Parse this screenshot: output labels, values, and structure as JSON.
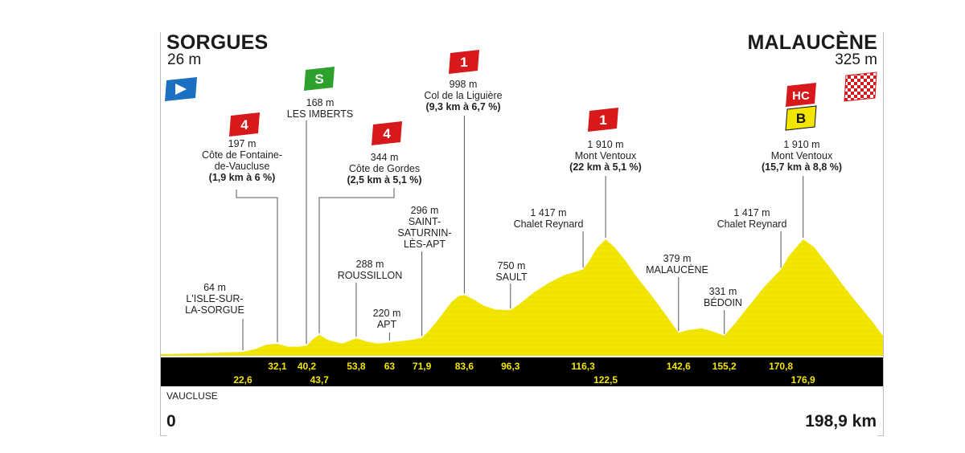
{
  "start": {
    "name": "SORGUES",
    "altitude": "26 m"
  },
  "finish": {
    "name": "MALAUCÈNE",
    "altitude": "325 m"
  },
  "department": "VAUCLUSE",
  "distance": {
    "start": "0",
    "end": "198,9 km"
  },
  "climb_badges": [
    {
      "id": "fontaine",
      "label": "4",
      "color": "#d7191c"
    },
    {
      "id": "imberts",
      "label": "S",
      "color": "#2ea12c"
    },
    {
      "id": "gordes",
      "label": "4",
      "color": "#d7191c"
    },
    {
      "id": "liguiere",
      "label": "1",
      "color": "#d7191c"
    },
    {
      "id": "ventoux1",
      "label": "1",
      "color": "#d7191c"
    },
    {
      "id": "ventoux2-hc",
      "label": "HC",
      "color": "#d7191c"
    },
    {
      "id": "ventoux2-b",
      "label": "B",
      "color": "#f2e500"
    }
  ],
  "points": {
    "fontaine": {
      "alt": "197 m",
      "name1": "Côte de Fontaine-",
      "name2": "de-Vaucluse",
      "detail": "(1,9 km à 6 %)"
    },
    "imberts": {
      "alt": "168 m",
      "name1": "LES IMBERTS"
    },
    "gordes": {
      "alt": "344 m",
      "name1": "Côte de Gordes",
      "detail": "(2,5 km à 5,1 %)"
    },
    "liguiere": {
      "alt": "998 m",
      "name1": "Col de la Liguière",
      "detail": "(9,3 km à 6,7 %)"
    },
    "ventoux1": {
      "alt": "1 910 m",
      "name1": "Mont Ventoux",
      "detail": "(22 km à 5,1 %)"
    },
    "ventoux2": {
      "alt": "1 910 m",
      "name1": "Mont Ventoux",
      "detail": "(15,7 km à 8,8 %)"
    },
    "isle": {
      "alt": "64 m",
      "name1": "L'ISLE-SUR-",
      "name2": "LA-SORGUE"
    },
    "roussillon": {
      "alt": "288 m",
      "name1": "ROUSSILLON"
    },
    "apt": {
      "alt": "220 m",
      "name1": "APT"
    },
    "saturnin": {
      "alt": "296 m",
      "name1": "SAINT-",
      "name2": "SATURNIN-",
      "name3": "LÈS-APT"
    },
    "sault": {
      "alt": "750 m",
      "name1": "SAULT"
    },
    "reynard1": {
      "alt": "1 417 m",
      "name1": "Chalet Reynard"
    },
    "malaucene": {
      "alt": "379 m",
      "name1": "MALAUCÈNE"
    },
    "bedoin": {
      "alt": "331 m",
      "name1": "BÉDOIN"
    },
    "reynard2": {
      "alt": "1 417 m",
      "name1": "Chalet Reynard"
    }
  },
  "chart_data": {
    "type": "area",
    "title": "",
    "xlabel": "",
    "ylabel": "",
    "x_unit": "km",
    "y_unit": "m",
    "xlim": [
      0,
      198.9
    ],
    "colors": {
      "fill": "#f2e500",
      "band": "#000000",
      "km_text": "#f2e500"
    },
    "profile": [
      [
        0,
        26
      ],
      [
        10,
        40
      ],
      [
        18,
        55
      ],
      [
        22.6,
        64
      ],
      [
        26,
        110
      ],
      [
        29,
        180
      ],
      [
        32.1,
        197
      ],
      [
        35,
        150
      ],
      [
        38,
        150
      ],
      [
        40.2,
        168
      ],
      [
        42,
        280
      ],
      [
        43.7,
        344
      ],
      [
        46,
        260
      ],
      [
        50,
        200
      ],
      [
        53.8,
        288
      ],
      [
        57,
        230
      ],
      [
        60,
        200
      ],
      [
        63,
        220
      ],
      [
        66,
        240
      ],
      [
        69,
        260
      ],
      [
        71.9,
        296
      ],
      [
        74,
        420
      ],
      [
        77,
        640
      ],
      [
        80,
        880
      ],
      [
        82,
        980
      ],
      [
        83.6,
        998
      ],
      [
        86,
        930
      ],
      [
        89,
        820
      ],
      [
        92,
        760
      ],
      [
        96.3,
        750
      ],
      [
        99,
        860
      ],
      [
        103,
        1050
      ],
      [
        107,
        1200
      ],
      [
        111,
        1320
      ],
      [
        116.3,
        1417
      ],
      [
        118,
        1560
      ],
      [
        120,
        1760
      ],
      [
        122.5,
        1910
      ],
      [
        125,
        1780
      ],
      [
        128,
        1560
      ],
      [
        131,
        1300
      ],
      [
        135,
        1000
      ],
      [
        139,
        680
      ],
      [
        142.6,
        379
      ],
      [
        145,
        420
      ],
      [
        149,
        450
      ],
      [
        152,
        400
      ],
      [
        155.2,
        331
      ],
      [
        158,
        520
      ],
      [
        162,
        820
      ],
      [
        166,
        1120
      ],
      [
        170.8,
        1417
      ],
      [
        173,
        1640
      ],
      [
        176.9,
        1910
      ],
      [
        180,
        1780
      ],
      [
        184,
        1470
      ],
      [
        188,
        1150
      ],
      [
        192,
        850
      ],
      [
        196,
        560
      ],
      [
        198.9,
        325
      ]
    ],
    "km_markers": [
      {
        "km": 22.6,
        "label": "22,6",
        "row": 2
      },
      {
        "km": 32.1,
        "label": "32,1",
        "row": 1
      },
      {
        "km": 40.2,
        "label": "40,2",
        "row": 1
      },
      {
        "km": 43.7,
        "label": "43,7",
        "row": 2
      },
      {
        "km": 53.8,
        "label": "53,8",
        "row": 1
      },
      {
        "km": 63,
        "label": "63",
        "row": 1
      },
      {
        "km": 71.9,
        "label": "71,9",
        "row": 1
      },
      {
        "km": 83.6,
        "label": "83,6",
        "row": 1
      },
      {
        "km": 96.3,
        "label": "96,3",
        "row": 1
      },
      {
        "km": 116.3,
        "label": "116,3",
        "row": 1
      },
      {
        "km": 122.5,
        "label": "122,5",
        "row": 2
      },
      {
        "km": 142.6,
        "label": "142,6",
        "row": 1
      },
      {
        "km": 155.2,
        "label": "155,2",
        "row": 1
      },
      {
        "km": 170.8,
        "label": "170,8",
        "row": 1
      },
      {
        "km": 176.9,
        "label": "176,9",
        "row": 2
      }
    ],
    "waypoints": [
      {
        "id": "isle",
        "km": 22.6,
        "alt_m": 64
      },
      {
        "id": "fontaine",
        "km": 32.1,
        "alt_m": 197
      },
      {
        "id": "imberts",
        "km": 40.2,
        "alt_m": 168
      },
      {
        "id": "gordes",
        "km": 43.7,
        "alt_m": 344
      },
      {
        "id": "roussillon",
        "km": 53.8,
        "alt_m": 288
      },
      {
        "id": "apt",
        "km": 63,
        "alt_m": 220
      },
      {
        "id": "saturnin",
        "km": 71.9,
        "alt_m": 296
      },
      {
        "id": "liguiere",
        "km": 83.6,
        "alt_m": 998
      },
      {
        "id": "sault",
        "km": 96.3,
        "alt_m": 750
      },
      {
        "id": "reynard1",
        "km": 116.3,
        "alt_m": 1417
      },
      {
        "id": "ventoux1",
        "km": 122.5,
        "alt_m": 1910
      },
      {
        "id": "malaucene",
        "km": 142.6,
        "alt_m": 379
      },
      {
        "id": "bedoin",
        "km": 155.2,
        "alt_m": 331
      },
      {
        "id": "reynard2",
        "km": 170.8,
        "alt_m": 1417
      },
      {
        "id": "ventoux2",
        "km": 176.9,
        "alt_m": 1910
      }
    ]
  }
}
